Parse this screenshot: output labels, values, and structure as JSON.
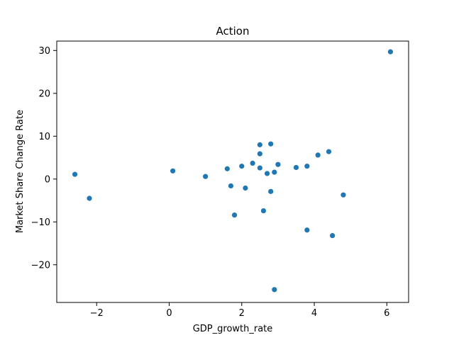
{
  "chart_data": {
    "type": "scatter",
    "title": "Action",
    "xlabel": "GDP_growth_rate",
    "ylabel": "Market Share Change Rate",
    "xlim": [
      -3.1,
      6.6
    ],
    "ylim": [
      -28.8,
      32.2
    ],
    "xticks": [
      -2,
      0,
      2,
      4,
      6
    ],
    "yticks": [
      -20,
      -10,
      0,
      10,
      20,
      30
    ],
    "grid": false,
    "legend": "none",
    "point_color": "#1f77b4",
    "points": [
      {
        "x": -2.6,
        "y": 1.1
      },
      {
        "x": -2.2,
        "y": -4.5
      },
      {
        "x": 0.1,
        "y": 1.9
      },
      {
        "x": 1.0,
        "y": 0.6
      },
      {
        "x": 1.6,
        "y": 2.4
      },
      {
        "x": 1.7,
        "y": -1.6
      },
      {
        "x": 1.8,
        "y": -8.4
      },
      {
        "x": 2.0,
        "y": 3.0
      },
      {
        "x": 2.1,
        "y": -2.1
      },
      {
        "x": 2.3,
        "y": 3.7
      },
      {
        "x": 2.5,
        "y": 8.0
      },
      {
        "x": 2.5,
        "y": 5.9
      },
      {
        "x": 2.5,
        "y": 2.6
      },
      {
        "x": 2.6,
        "y": -7.4
      },
      {
        "x": 2.7,
        "y": 1.3
      },
      {
        "x": 2.8,
        "y": 8.2
      },
      {
        "x": 2.8,
        "y": -2.9
      },
      {
        "x": 2.9,
        "y": 1.6
      },
      {
        "x": 2.9,
        "y": -25.8
      },
      {
        "x": 3.0,
        "y": 3.4
      },
      {
        "x": 3.5,
        "y": 2.7
      },
      {
        "x": 3.8,
        "y": 3.0
      },
      {
        "x": 3.8,
        "y": -11.9
      },
      {
        "x": 4.1,
        "y": 5.6
      },
      {
        "x": 4.4,
        "y": 6.4
      },
      {
        "x": 4.5,
        "y": -13.2
      },
      {
        "x": 4.8,
        "y": -3.7
      },
      {
        "x": 6.1,
        "y": 29.7
      }
    ]
  }
}
